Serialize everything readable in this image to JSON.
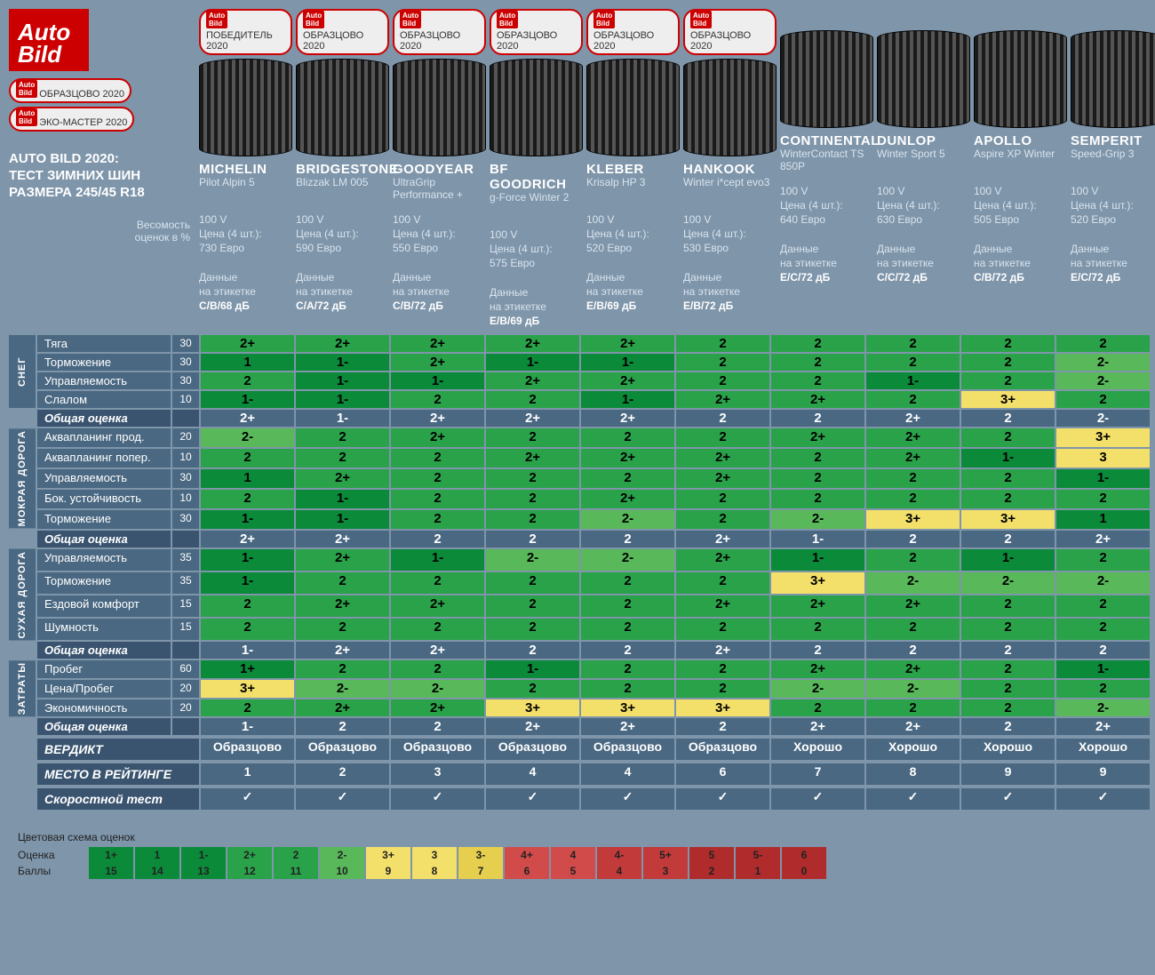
{
  "logo_top": "Auto",
  "logo_bot": "Bild",
  "title": "AUTO BILD 2020:\nТЕСТ ЗИМНИХ ШИН\nРАЗМЕРА 245/45 R18",
  "side_badges": [
    "ОБРАЗЦОВО 2020",
    "ЭКО-МАСТЕР 2020"
  ],
  "weight_label": "Весомость\nоценок в %",
  "price_unit_label": "Цена (4 шт.):",
  "label_data": "Данные\nна этикетке",
  "colors": {
    "g1": "#0b8a3a",
    "g2": "#2aa24a",
    "g3": "#58b85a",
    "y1": "#f3e06b",
    "y2": "#e6cf4e",
    "r1": "#d14b4b",
    "r2": "#c23a3a",
    "r3": "#b02c2c",
    "sum": "#4a6882"
  },
  "scoreColorMap": {
    "1+": "g1",
    "1": "g1",
    "1-": "g1",
    "2+": "g2",
    "2": "g2",
    "2-": "g3",
    "3+": "y1",
    "3": "y1",
    "3-": "y2",
    "4+": "r1",
    "4": "r1",
    "4-": "r2",
    "5+": "r2",
    "5": "r3",
    "5-": "r3",
    "6": "r3"
  },
  "tires": [
    {
      "award": "ПОБЕДИТЕЛЬ 2020",
      "brand": "MICHELIN",
      "model": "Pilot Alpin 5",
      "load": "100 V",
      "price": "730 Евро",
      "label": "C/B/68 дБ"
    },
    {
      "award": "ОБРАЗЦОВО 2020",
      "brand": "BRIDGESTONE",
      "model": "Blizzak LM 005",
      "load": "100 V",
      "price": "590 Евро",
      "label": "C/A/72 дБ"
    },
    {
      "award": "ОБРАЗЦОВО 2020",
      "brand": "GOODYEAR",
      "model": "UltraGrip Performance +",
      "load": "100 V",
      "price": "550 Евро",
      "label": "C/B/72 дБ"
    },
    {
      "award": "ОБРАЗЦОВО 2020",
      "brand": "BF GOODRICH",
      "model": "g-Force Winter 2",
      "load": "100 V",
      "price": "575 Евро",
      "label": "E/B/69 дБ"
    },
    {
      "award": "ОБРАЗЦОВО 2020",
      "brand": "KLEBER",
      "model": "Krisalp HP 3",
      "load": "100 V",
      "price": "520 Евро",
      "label": "E/B/69 дБ"
    },
    {
      "award": "ОБРАЗЦОВО 2020",
      "brand": "HANKOOK",
      "model": "Winter i*cept evo3",
      "load": "100 V",
      "price": "530 Евро",
      "label": "E/B/72 дБ"
    },
    {
      "award": "",
      "brand": "CONTINENTAL",
      "model": "WinterContact TS 850P",
      "load": "100 V",
      "price": "640 Евро",
      "label": "E/C/72 дБ"
    },
    {
      "award": "",
      "brand": "DUNLOP",
      "model": "Winter Sport 5",
      "load": "100 V",
      "price": "630 Евро",
      "label": "C/C/72 дБ"
    },
    {
      "award": "",
      "brand": "APOLLO",
      "model": "Aspire XP Winter",
      "load": "100 V",
      "price": "505 Евро",
      "label": "C/B/72 дБ"
    },
    {
      "award": "",
      "brand": "SEMPERIT",
      "model": "Speed-Grip 3",
      "load": "100 V",
      "price": "520 Евро",
      "label": "E/C/72 дБ"
    }
  ],
  "groups": [
    {
      "cat": "СНЕГ",
      "rows": [
        {
          "label": "Тяга",
          "wt": 30,
          "v": [
            "2+",
            "2+",
            "2+",
            "2+",
            "2+",
            "2",
            "2",
            "2",
            "2",
            "2"
          ]
        },
        {
          "label": "Торможение",
          "wt": 30,
          "v": [
            "1",
            "1-",
            "2+",
            "1-",
            "1-",
            "2",
            "2",
            "2",
            "2",
            "2-"
          ]
        },
        {
          "label": "Управляемость",
          "wt": 30,
          "v": [
            "2",
            "1-",
            "1-",
            "2+",
            "2+",
            "2",
            "2",
            "1-",
            "2",
            "2-"
          ]
        },
        {
          "label": "Слалом",
          "wt": 10,
          "v": [
            "1-",
            "1-",
            "2",
            "2",
            "1-",
            "2+",
            "2+",
            "2",
            "3+",
            "2"
          ]
        }
      ],
      "sum": {
        "label": "Общая оценка",
        "v": [
          "2+",
          "1-",
          "2+",
          "2+",
          "2+",
          "2",
          "2",
          "2+",
          "2",
          "2-"
        ]
      }
    },
    {
      "cat": "МОКРАЯ ДОРОГА",
      "rows": [
        {
          "label": "Аквапланинг прод.",
          "wt": 20,
          "v": [
            "2-",
            "2",
            "2+",
            "2",
            "2",
            "2",
            "2+",
            "2+",
            "2",
            "3+"
          ]
        },
        {
          "label": "Аквапланинг попер.",
          "wt": 10,
          "v": [
            "2",
            "2",
            "2",
            "2+",
            "2+",
            "2+",
            "2",
            "2+",
            "1-",
            "3"
          ]
        },
        {
          "label": "Управляемость",
          "wt": 30,
          "v": [
            "1",
            "2+",
            "2",
            "2",
            "2",
            "2+",
            "2",
            "2",
            "2",
            "1-"
          ]
        },
        {
          "label": "Бок. устойчивость",
          "wt": 10,
          "v": [
            "2",
            "1-",
            "2",
            "2",
            "2+",
            "2",
            "2",
            "2",
            "2",
            "2"
          ]
        },
        {
          "label": "Торможение",
          "wt": 30,
          "v": [
            "1-",
            "1-",
            "2",
            "2",
            "2-",
            "2",
            "2-",
            "3+",
            "3+",
            "1"
          ]
        }
      ],
      "sum": {
        "label": "Общая оценка",
        "v": [
          "2+",
          "2+",
          "2",
          "2",
          "2",
          "2+",
          "1-",
          "2",
          "2",
          "2+"
        ]
      }
    },
    {
      "cat": "СУХАЯ ДОРОГА",
      "rows": [
        {
          "label": "Управляемость",
          "wt": 35,
          "v": [
            "1-",
            "2+",
            "1-",
            "2-",
            "2-",
            "2+",
            "1-",
            "2",
            "1-",
            "2"
          ]
        },
        {
          "label": "Торможение",
          "wt": 35,
          "v": [
            "1-",
            "2",
            "2",
            "2",
            "2",
            "2",
            "3+",
            "2-",
            "2-",
            "2-"
          ]
        },
        {
          "label": "Ездовой комфорт",
          "wt": 15,
          "v": [
            "2",
            "2+",
            "2+",
            "2",
            "2",
            "2+",
            "2+",
            "2+",
            "2",
            "2"
          ]
        },
        {
          "label": "Шумность",
          "wt": 15,
          "v": [
            "2",
            "2",
            "2",
            "2",
            "2",
            "2",
            "2",
            "2",
            "2",
            "2"
          ]
        }
      ],
      "sum": {
        "label": "Общая оценка",
        "v": [
          "1-",
          "2+",
          "2+",
          "2",
          "2",
          "2+",
          "2",
          "2",
          "2",
          "2"
        ]
      }
    },
    {
      "cat": "ЗАТРАТЫ",
      "rows": [
        {
          "label": "Пробег",
          "wt": 60,
          "v": [
            "1+",
            "2",
            "2",
            "1-",
            "2",
            "2",
            "2+",
            "2+",
            "2",
            "1-"
          ]
        },
        {
          "label": "Цена/Пробег",
          "wt": 20,
          "v": [
            "3+",
            "2-",
            "2-",
            "2",
            "2",
            "2",
            "2-",
            "2-",
            "2",
            "2"
          ]
        },
        {
          "label": "Экономичность",
          "wt": 20,
          "v": [
            "2",
            "2+",
            "2+",
            "3+",
            "3+",
            "3+",
            "2",
            "2",
            "2",
            "2-"
          ]
        }
      ],
      "sum": {
        "label": "Общая оценка",
        "v": [
          "1-",
          "2",
          "2",
          "2+",
          "2+",
          "2",
          "2+",
          "2+",
          "2",
          "2+"
        ]
      }
    }
  ],
  "footer": [
    {
      "label": "ВЕРДИКТ",
      "v": [
        "Образцово",
        "Образцово",
        "Образцово",
        "Образцово",
        "Образцово",
        "Образцово",
        "Хорошо",
        "Хорошо",
        "Хорошо",
        "Хорошо"
      ]
    },
    {
      "label": "МЕСТО В РЕЙТИНГЕ",
      "v": [
        "1",
        "2",
        "3",
        "4",
        "4",
        "6",
        "7",
        "8",
        "9",
        "9"
      ]
    },
    {
      "label": "Скоростной тест",
      "v": [
        "✓",
        "✓",
        "✓",
        "✓",
        "✓",
        "✓",
        "✓",
        "✓",
        "✓",
        "✓"
      ]
    }
  ],
  "legend": {
    "title": "Цветовая схема оценок",
    "grade_label": "Оценка",
    "points_label": "Баллы",
    "items": [
      {
        "g": "1+",
        "p": "15",
        "ck": "g1"
      },
      {
        "g": "1",
        "p": "14",
        "ck": "g1"
      },
      {
        "g": "1-",
        "p": "13",
        "ck": "g1"
      },
      {
        "g": "2+",
        "p": "12",
        "ck": "g2"
      },
      {
        "g": "2",
        "p": "11",
        "ck": "g2"
      },
      {
        "g": "2-",
        "p": "10",
        "ck": "g3"
      },
      {
        "g": "3+",
        "p": "9",
        "ck": "y1"
      },
      {
        "g": "3",
        "p": "8",
        "ck": "y1"
      },
      {
        "g": "3-",
        "p": "7",
        "ck": "y2"
      },
      {
        "g": "4+",
        "p": "6",
        "ck": "r1"
      },
      {
        "g": "4",
        "p": "5",
        "ck": "r1"
      },
      {
        "g": "4-",
        "p": "4",
        "ck": "r2"
      },
      {
        "g": "5+",
        "p": "3",
        "ck": "r2"
      },
      {
        "g": "5",
        "p": "2",
        "ck": "r3"
      },
      {
        "g": "5-",
        "p": "1",
        "ck": "r3"
      },
      {
        "g": "6",
        "p": "0",
        "ck": "r3"
      }
    ]
  }
}
